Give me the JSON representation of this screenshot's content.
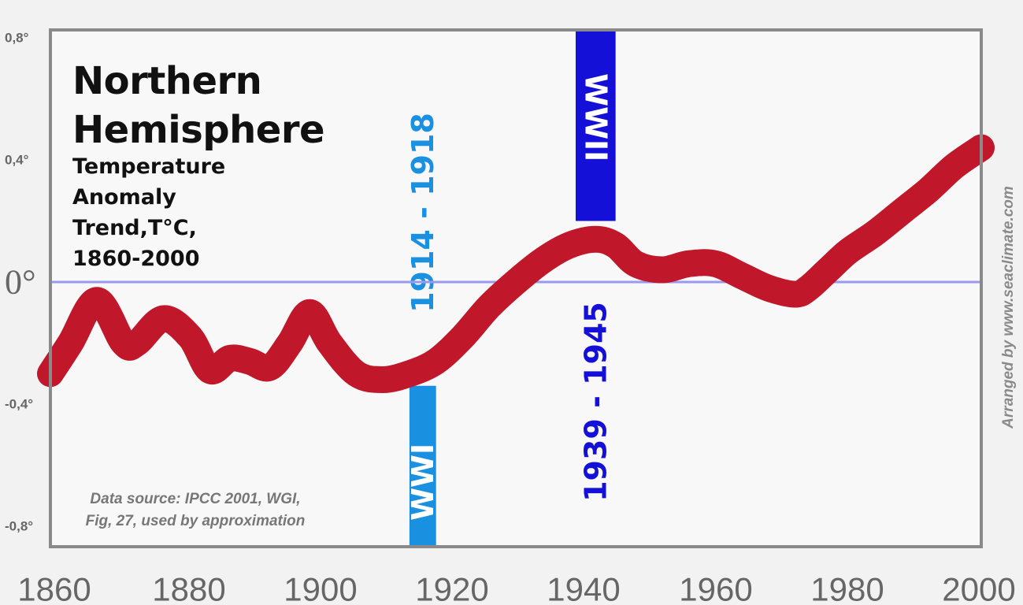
{
  "chart_data": {
    "type": "line",
    "title": "Northern\nHemisphere",
    "subtitle": "Temperature\nAnomaly\nTrend,T°C,\n1860-2000",
    "xlabel": "",
    "ylabel": "",
    "xlim": [
      1860,
      2000
    ],
    "ylim": [
      -0.8,
      0.8
    ],
    "x_ticks": [
      "1860",
      "1880",
      "1900",
      "1920",
      "1940",
      "1960",
      "1980",
      "2000"
    ],
    "y_ticks": [
      {
        "value": 0.8,
        "label": "0,8°"
      },
      {
        "value": 0.4,
        "label": "0,4°"
      },
      {
        "value": 0,
        "label": "0°"
      },
      {
        "value": -0.4,
        "label": "-0,4°"
      },
      {
        "value": -0.8,
        "label": "-0,8°"
      }
    ],
    "grid": false,
    "reference_line": {
      "y": 0,
      "color": "#9999ee"
    },
    "series": [
      {
        "name": "",
        "color": "#c0182a",
        "x": [
          1860,
          1863,
          1867,
          1871,
          1873,
          1877,
          1881,
          1884,
          1887,
          1890,
          1893,
          1896,
          1899,
          1902,
          1906,
          1910,
          1914,
          1918,
          1922,
          1926,
          1930,
          1934,
          1938,
          1942,
          1945,
          1948,
          1952,
          1956,
          1960,
          1964,
          1968,
          1972,
          1974,
          1977,
          1980,
          1984,
          1988,
          1992,
          1996,
          2000
        ],
        "values": [
          -0.3,
          -0.2,
          -0.06,
          -0.2,
          -0.2,
          -0.12,
          -0.18,
          -0.29,
          -0.25,
          -0.26,
          -0.28,
          -0.2,
          -0.1,
          -0.2,
          -0.3,
          -0.32,
          -0.3,
          -0.26,
          -0.18,
          -0.08,
          0,
          0.07,
          0.12,
          0.14,
          0.12,
          0.06,
          0.04,
          0.06,
          0.06,
          0.02,
          -0.02,
          -0.04,
          -0.02,
          0.04,
          0.1,
          0.16,
          0.23,
          0.3,
          0.38,
          0.44
        ]
      }
    ],
    "bands": [
      {
        "start": 1914,
        "end": 1918,
        "label": "WWI",
        "years_label": "1914 - 1918",
        "color": "#1a90e0"
      },
      {
        "start": 1939,
        "end": 1945,
        "label": "WWII",
        "years_label": "1939 - 1945",
        "color": "#1510d8"
      }
    ],
    "annotations": {
      "source": "Data source: IPCC 2001, WGI,\nFig, 27, used by approximation",
      "credit": "Arranged by www.seaclimate.com"
    }
  }
}
